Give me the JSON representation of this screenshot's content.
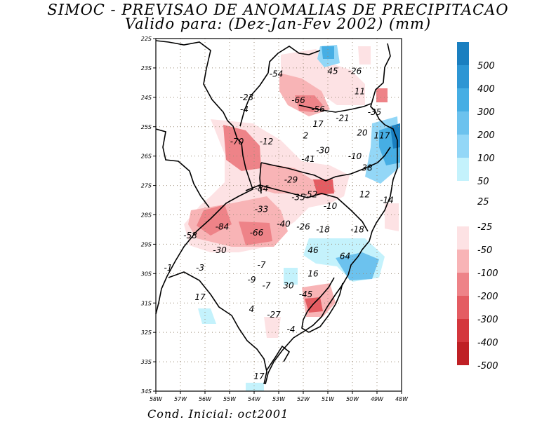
{
  "title": {
    "line1": "SIMOC - PREVISAO DE ANOMALIAS DE PRECIPITACAO",
    "line2": "Valido para: (Dez-Jan-Fev 2002) (mm)"
  },
  "footer": "Cond. Inicial: oct2001",
  "map": {
    "lon_labels": [
      "58W",
      "57W",
      "56W",
      "55W",
      "54W",
      "53W",
      "52W",
      "51W",
      "50W",
      "49W",
      "48W"
    ],
    "lat_labels": [
      "22S",
      "23S",
      "24S",
      "25S",
      "26S",
      "27S",
      "28S",
      "29S",
      "30S",
      "31S",
      "32S",
      "33S",
      "34S"
    ],
    "values": [
      {
        "text": "-54",
        "lon": -53.1,
        "lat": -23.3
      },
      {
        "text": "45",
        "lon": -50.8,
        "lat": -23.2
      },
      {
        "text": "-26",
        "lon": -49.9,
        "lat": -23.2
      },
      {
        "text": "11",
        "lon": -49.7,
        "lat": -23.9
      },
      {
        "text": "-23",
        "lon": -54.3,
        "lat": -24.1
      },
      {
        "text": "-66",
        "lon": -52.2,
        "lat": -24.2
      },
      {
        "text": "-4",
        "lon": -54.4,
        "lat": -24.5
      },
      {
        "text": "-56",
        "lon": -51.4,
        "lat": -24.5
      },
      {
        "text": "-35",
        "lon": -49.1,
        "lat": -24.6
      },
      {
        "text": "-21",
        "lon": -50.4,
        "lat": -24.8
      },
      {
        "text": "17",
        "lon": -51.4,
        "lat": -25.0
      },
      {
        "text": "20",
        "lon": -49.6,
        "lat": -25.3
      },
      {
        "text": "117",
        "lon": -48.8,
        "lat": -25.4
      },
      {
        "text": "2",
        "lon": -51.9,
        "lat": -25.4
      },
      {
        "text": "-70",
        "lon": -54.7,
        "lat": -25.6
      },
      {
        "text": "-12",
        "lon": -53.5,
        "lat": -25.6
      },
      {
        "text": "-30",
        "lon": -51.2,
        "lat": -25.9
      },
      {
        "text": "-10",
        "lon": -49.9,
        "lat": -26.1
      },
      {
        "text": "-41",
        "lon": -51.8,
        "lat": -26.2
      },
      {
        "text": "38",
        "lon": -49.4,
        "lat": -26.5
      },
      {
        "text": "-29",
        "lon": -52.5,
        "lat": -26.9
      },
      {
        "text": "-84",
        "lon": -53.7,
        "lat": -27.2
      },
      {
        "text": "-52",
        "lon": -51.7,
        "lat": -27.4
      },
      {
        "text": "-35",
        "lon": -52.2,
        "lat": -27.5
      },
      {
        "text": "12",
        "lon": -49.5,
        "lat": -27.4
      },
      {
        "text": "-14",
        "lon": -48.6,
        "lat": -27.6
      },
      {
        "text": "-33",
        "lon": -53.7,
        "lat": -27.9
      },
      {
        "text": "-10",
        "lon": -50.9,
        "lat": -27.8
      },
      {
        "text": "-84",
        "lon": -55.3,
        "lat": -28.5
      },
      {
        "text": "-66",
        "lon": -53.9,
        "lat": -28.7
      },
      {
        "text": "-40",
        "lon": -52.8,
        "lat": -28.4
      },
      {
        "text": "-26",
        "lon": -52.0,
        "lat": -28.5
      },
      {
        "text": "-18",
        "lon": -51.2,
        "lat": -28.6
      },
      {
        "text": "-18",
        "lon": -49.8,
        "lat": -28.6
      },
      {
        "text": "-58",
        "lon": -56.6,
        "lat": -28.8
      },
      {
        "text": "-30",
        "lon": -55.4,
        "lat": -29.3
      },
      {
        "text": "46",
        "lon": -51.6,
        "lat": -29.3
      },
      {
        "text": "64",
        "lon": -50.3,
        "lat": -29.5
      },
      {
        "text": "-1",
        "lon": -57.5,
        "lat": -29.9
      },
      {
        "text": "-3",
        "lon": -56.2,
        "lat": -29.9
      },
      {
        "text": "-7",
        "lon": -53.7,
        "lat": -29.8
      },
      {
        "text": "16",
        "lon": -51.6,
        "lat": -30.1
      },
      {
        "text": "-9",
        "lon": -54.1,
        "lat": -30.3
      },
      {
        "text": "-7",
        "lon": -53.5,
        "lat": -30.5
      },
      {
        "text": "30",
        "lon": -52.6,
        "lat": -30.5
      },
      {
        "text": "-45",
        "lon": -51.9,
        "lat": -30.8
      },
      {
        "text": "17",
        "lon": -56.2,
        "lat": -30.9
      },
      {
        "text": "4",
        "lon": -54.1,
        "lat": -31.3
      },
      {
        "text": "-27",
        "lon": -53.2,
        "lat": -31.5
      },
      {
        "text": "-4",
        "lon": -52.5,
        "lat": -32.0
      },
      {
        "text": "17",
        "lon": -53.8,
        "lat": -33.6
      }
    ]
  },
  "colorbar": {
    "positive_labels": [
      "500",
      "400",
      "300",
      "200",
      "100",
      "50",
      "25"
    ],
    "positive_colors": [
      "#1a7fc0",
      "#2d96d4",
      "#46aee4",
      "#6cc2ee",
      "#93d7f7",
      "#c4f2fc"
    ],
    "negative_labels": [
      "-25",
      "-50",
      "-100",
      "-200",
      "-300",
      "-400",
      "-500"
    ],
    "negative_colors": [
      "#fde2e4",
      "#f8b4b6",
      "#ee8388",
      "#e45c62",
      "#d4373d",
      "#bf2025"
    ]
  }
}
